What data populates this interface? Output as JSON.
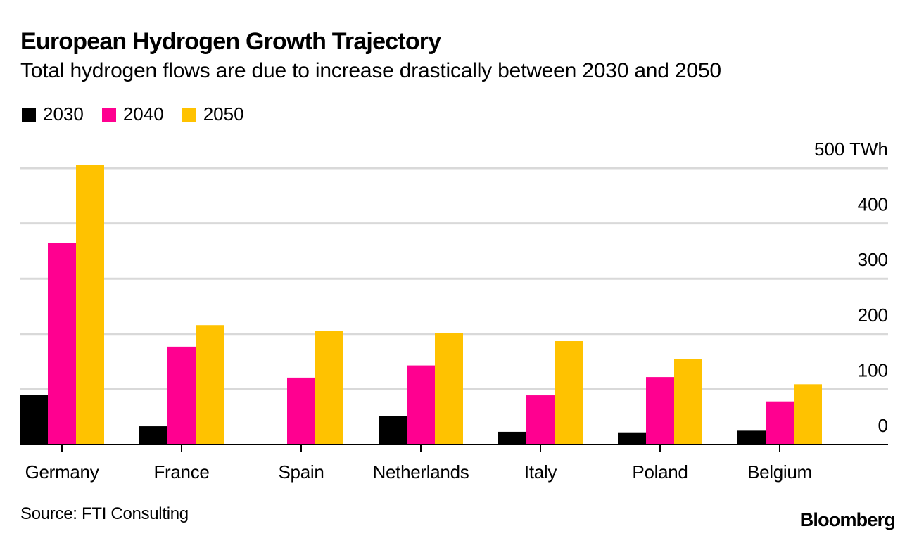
{
  "chart_data": {
    "type": "bar",
    "title": "European Hydrogen Growth Trajectory",
    "subtitle": "Total hydrogen flows are due to increase drastically between 2030 and 2050",
    "xlabel": "",
    "ylabel": "",
    "y_unit": "TWh",
    "ylim": [
      0,
      500
    ],
    "yticks": [
      0,
      100,
      200,
      300,
      400,
      500
    ],
    "ytick_labels": [
      "0",
      "100",
      "200",
      "300",
      "400",
      "500 TWh"
    ],
    "grid": true,
    "y_axis_position": "right",
    "legend_position": "top-left",
    "categories": [
      "Germany",
      "France",
      "Spain",
      "Netherlands",
      "Italy",
      "Poland",
      "Belgium"
    ],
    "series": [
      {
        "name": "2030",
        "color": "#000000",
        "values": [
          90,
          33,
          1,
          51,
          23,
          22,
          25
        ]
      },
      {
        "name": "2040",
        "color": "#ff0090",
        "values": [
          365,
          177,
          121,
          143,
          89,
          122,
          78
        ]
      },
      {
        "name": "2050",
        "color": "#ffc200",
        "values": [
          506,
          216,
          205,
          201,
          187,
          155,
          109
        ]
      }
    ],
    "source": "Source: FTI Consulting",
    "brand": "Bloomberg"
  }
}
